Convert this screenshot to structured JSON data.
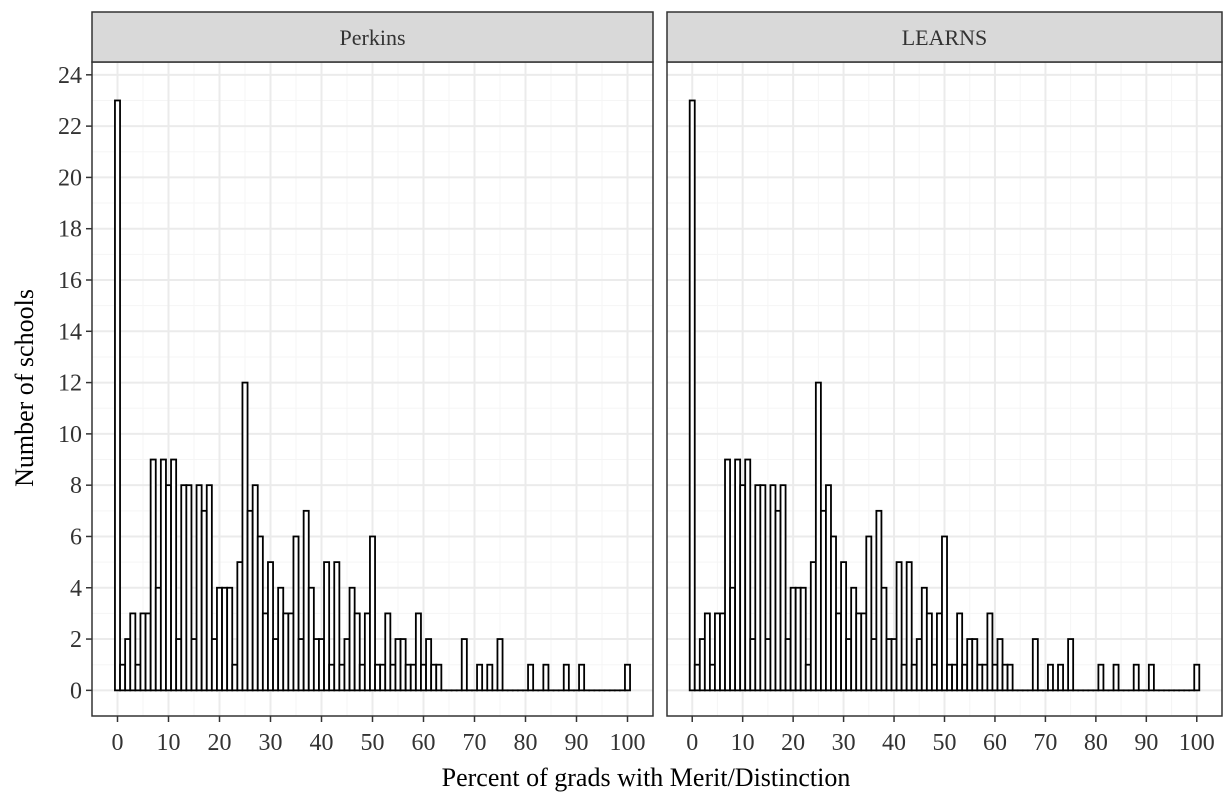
{
  "chart_data": {
    "type": "bar",
    "xlabel": "Percent of grads with Merit/Distinction",
    "ylabel": "Number of schools",
    "xlim": [
      -5,
      105
    ],
    "ylim": [
      -1,
      24.5
    ],
    "x_ticks": [
      "0",
      "10",
      "20",
      "30",
      "40",
      "50",
      "60",
      "70",
      "80",
      "90",
      "100"
    ],
    "y_ticks": [
      "0",
      "2",
      "4",
      "6",
      "8",
      "10",
      "12",
      "14",
      "16",
      "18",
      "20",
      "22",
      "24"
    ],
    "bin_width": 1,
    "panels": [
      {
        "name": "Perkins",
        "bins": [
          {
            "x": 0,
            "count": 23
          },
          {
            "x": 1,
            "count": 1
          },
          {
            "x": 2,
            "count": 2
          },
          {
            "x": 3,
            "count": 3
          },
          {
            "x": 4,
            "count": 1
          },
          {
            "x": 5,
            "count": 3
          },
          {
            "x": 6,
            "count": 3
          },
          {
            "x": 7,
            "count": 9
          },
          {
            "x": 8,
            "count": 4
          },
          {
            "x": 9,
            "count": 9
          },
          {
            "x": 10,
            "count": 8
          },
          {
            "x": 11,
            "count": 9
          },
          {
            "x": 12,
            "count": 2
          },
          {
            "x": 13,
            "count": 8
          },
          {
            "x": 14,
            "count": 8
          },
          {
            "x": 15,
            "count": 2
          },
          {
            "x": 16,
            "count": 8
          },
          {
            "x": 17,
            "count": 7
          },
          {
            "x": 18,
            "count": 8
          },
          {
            "x": 19,
            "count": 2
          },
          {
            "x": 20,
            "count": 4
          },
          {
            "x": 21,
            "count": 4
          },
          {
            "x": 22,
            "count": 4
          },
          {
            "x": 23,
            "count": 1
          },
          {
            "x": 24,
            "count": 5
          },
          {
            "x": 25,
            "count": 12
          },
          {
            "x": 26,
            "count": 7
          },
          {
            "x": 27,
            "count": 8
          },
          {
            "x": 28,
            "count": 6
          },
          {
            "x": 29,
            "count": 3
          },
          {
            "x": 30,
            "count": 5
          },
          {
            "x": 31,
            "count": 2
          },
          {
            "x": 32,
            "count": 4
          },
          {
            "x": 33,
            "count": 3
          },
          {
            "x": 34,
            "count": 3
          },
          {
            "x": 35,
            "count": 6
          },
          {
            "x": 36,
            "count": 2
          },
          {
            "x": 37,
            "count": 7
          },
          {
            "x": 38,
            "count": 4
          },
          {
            "x": 39,
            "count": 2
          },
          {
            "x": 40,
            "count": 2
          },
          {
            "x": 41,
            "count": 5
          },
          {
            "x": 42,
            "count": 1
          },
          {
            "x": 43,
            "count": 5
          },
          {
            "x": 44,
            "count": 1
          },
          {
            "x": 45,
            "count": 2
          },
          {
            "x": 46,
            "count": 4
          },
          {
            "x": 47,
            "count": 3
          },
          {
            "x": 48,
            "count": 1
          },
          {
            "x": 49,
            "count": 3
          },
          {
            "x": 50,
            "count": 6
          },
          {
            "x": 51,
            "count": 1
          },
          {
            "x": 52,
            "count": 1
          },
          {
            "x": 53,
            "count": 3
          },
          {
            "x": 54,
            "count": 1
          },
          {
            "x": 55,
            "count": 2
          },
          {
            "x": 56,
            "count": 2
          },
          {
            "x": 57,
            "count": 1
          },
          {
            "x": 58,
            "count": 1
          },
          {
            "x": 59,
            "count": 3
          },
          {
            "x": 60,
            "count": 1
          },
          {
            "x": 61,
            "count": 2
          },
          {
            "x": 62,
            "count": 1
          },
          {
            "x": 63,
            "count": 1
          },
          {
            "x": 64,
            "count": 0
          },
          {
            "x": 65,
            "count": 0
          },
          {
            "x": 66,
            "count": 0
          },
          {
            "x": 67,
            "count": 0
          },
          {
            "x": 68,
            "count": 2
          },
          {
            "x": 69,
            "count": 0
          },
          {
            "x": 70,
            "count": 0
          },
          {
            "x": 71,
            "count": 1
          },
          {
            "x": 72,
            "count": 0
          },
          {
            "x": 73,
            "count": 1
          },
          {
            "x": 74,
            "count": 0
          },
          {
            "x": 75,
            "count": 2
          },
          {
            "x": 76,
            "count": 0
          },
          {
            "x": 77,
            "count": 0
          },
          {
            "x": 78,
            "count": 0
          },
          {
            "x": 79,
            "count": 0
          },
          {
            "x": 80,
            "count": 0
          },
          {
            "x": 81,
            "count": 1
          },
          {
            "x": 82,
            "count": 0
          },
          {
            "x": 83,
            "count": 0
          },
          {
            "x": 84,
            "count": 1
          },
          {
            "x": 85,
            "count": 0
          },
          {
            "x": 86,
            "count": 0
          },
          {
            "x": 87,
            "count": 0
          },
          {
            "x": 88,
            "count": 1
          },
          {
            "x": 89,
            "count": 0
          },
          {
            "x": 90,
            "count": 0
          },
          {
            "x": 91,
            "count": 1
          },
          {
            "x": 92,
            "count": 0
          },
          {
            "x": 93,
            "count": 0
          },
          {
            "x": 94,
            "count": 0
          },
          {
            "x": 95,
            "count": 0
          },
          {
            "x": 96,
            "count": 0
          },
          {
            "x": 97,
            "count": 0
          },
          {
            "x": 98,
            "count": 0
          },
          {
            "x": 99,
            "count": 0
          },
          {
            "x": 100,
            "count": 1
          }
        ]
      },
      {
        "name": "LEARNS",
        "bins": [
          {
            "x": 0,
            "count": 23
          },
          {
            "x": 1,
            "count": 1
          },
          {
            "x": 2,
            "count": 2
          },
          {
            "x": 3,
            "count": 3
          },
          {
            "x": 4,
            "count": 1
          },
          {
            "x": 5,
            "count": 3
          },
          {
            "x": 6,
            "count": 3
          },
          {
            "x": 7,
            "count": 9
          },
          {
            "x": 8,
            "count": 4
          },
          {
            "x": 9,
            "count": 9
          },
          {
            "x": 10,
            "count": 8
          },
          {
            "x": 11,
            "count": 9
          },
          {
            "x": 12,
            "count": 2
          },
          {
            "x": 13,
            "count": 8
          },
          {
            "x": 14,
            "count": 8
          },
          {
            "x": 15,
            "count": 2
          },
          {
            "x": 16,
            "count": 8
          },
          {
            "x": 17,
            "count": 7
          },
          {
            "x": 18,
            "count": 8
          },
          {
            "x": 19,
            "count": 2
          },
          {
            "x": 20,
            "count": 4
          },
          {
            "x": 21,
            "count": 4
          },
          {
            "x": 22,
            "count": 4
          },
          {
            "x": 23,
            "count": 1
          },
          {
            "x": 24,
            "count": 5
          },
          {
            "x": 25,
            "count": 12
          },
          {
            "x": 26,
            "count": 7
          },
          {
            "x": 27,
            "count": 8
          },
          {
            "x": 28,
            "count": 6
          },
          {
            "x": 29,
            "count": 3
          },
          {
            "x": 30,
            "count": 5
          },
          {
            "x": 31,
            "count": 2
          },
          {
            "x": 32,
            "count": 4
          },
          {
            "x": 33,
            "count": 3
          },
          {
            "x": 34,
            "count": 3
          },
          {
            "x": 35,
            "count": 6
          },
          {
            "x": 36,
            "count": 2
          },
          {
            "x": 37,
            "count": 7
          },
          {
            "x": 38,
            "count": 4
          },
          {
            "x": 39,
            "count": 2
          },
          {
            "x": 40,
            "count": 2
          },
          {
            "x": 41,
            "count": 5
          },
          {
            "x": 42,
            "count": 1
          },
          {
            "x": 43,
            "count": 5
          },
          {
            "x": 44,
            "count": 1
          },
          {
            "x": 45,
            "count": 2
          },
          {
            "x": 46,
            "count": 4
          },
          {
            "x": 47,
            "count": 3
          },
          {
            "x": 48,
            "count": 1
          },
          {
            "x": 49,
            "count": 3
          },
          {
            "x": 50,
            "count": 6
          },
          {
            "x": 51,
            "count": 1
          },
          {
            "x": 52,
            "count": 1
          },
          {
            "x": 53,
            "count": 3
          },
          {
            "x": 54,
            "count": 1
          },
          {
            "x": 55,
            "count": 2
          },
          {
            "x": 56,
            "count": 2
          },
          {
            "x": 57,
            "count": 1
          },
          {
            "x": 58,
            "count": 1
          },
          {
            "x": 59,
            "count": 3
          },
          {
            "x": 60,
            "count": 1
          },
          {
            "x": 61,
            "count": 2
          },
          {
            "x": 62,
            "count": 1
          },
          {
            "x": 63,
            "count": 1
          },
          {
            "x": 64,
            "count": 0
          },
          {
            "x": 65,
            "count": 0
          },
          {
            "x": 66,
            "count": 0
          },
          {
            "x": 67,
            "count": 0
          },
          {
            "x": 68,
            "count": 2
          },
          {
            "x": 69,
            "count": 0
          },
          {
            "x": 70,
            "count": 0
          },
          {
            "x": 71,
            "count": 1
          },
          {
            "x": 72,
            "count": 0
          },
          {
            "x": 73,
            "count": 1
          },
          {
            "x": 74,
            "count": 0
          },
          {
            "x": 75,
            "count": 2
          },
          {
            "x": 76,
            "count": 0
          },
          {
            "x": 77,
            "count": 0
          },
          {
            "x": 78,
            "count": 0
          },
          {
            "x": 79,
            "count": 0
          },
          {
            "x": 80,
            "count": 0
          },
          {
            "x": 81,
            "count": 1
          },
          {
            "x": 82,
            "count": 0
          },
          {
            "x": 83,
            "count": 0
          },
          {
            "x": 84,
            "count": 1
          },
          {
            "x": 85,
            "count": 0
          },
          {
            "x": 86,
            "count": 0
          },
          {
            "x": 87,
            "count": 0
          },
          {
            "x": 88,
            "count": 1
          },
          {
            "x": 89,
            "count": 0
          },
          {
            "x": 90,
            "count": 0
          },
          {
            "x": 91,
            "count": 1
          },
          {
            "x": 92,
            "count": 0
          },
          {
            "x": 93,
            "count": 0
          },
          {
            "x": 94,
            "count": 0
          },
          {
            "x": 95,
            "count": 0
          },
          {
            "x": 96,
            "count": 0
          },
          {
            "x": 97,
            "count": 0
          },
          {
            "x": 98,
            "count": 0
          },
          {
            "x": 99,
            "count": 0
          },
          {
            "x": 100,
            "count": 1
          }
        ]
      }
    ],
    "grid": true,
    "legend": "none",
    "colors": {
      "bar_fill": "#ffffff",
      "bar_stroke": "#000000",
      "grid_major": "#ebebeb",
      "grid_minor": "#f5f5f5",
      "strip_fill": "#d9d9d9",
      "panel_border": "#333333",
      "tick_text": "#4d4d4d"
    }
  }
}
